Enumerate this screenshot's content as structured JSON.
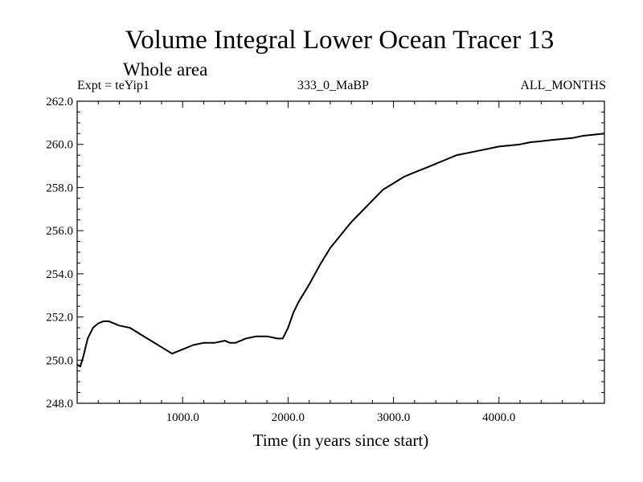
{
  "header": {
    "title": "Volume Integral Lower Ocean Tracer 13",
    "subtitle": "Whole area",
    "expt": "Expt = teYip1",
    "period": "333_0_MaBP",
    "months": "ALL_MONTHS"
  },
  "chart_data": {
    "type": "line",
    "title": "Volume Integral Lower Ocean Tracer 13",
    "subtitle": "Whole area",
    "xlabel": "Time (in years since start)",
    "ylabel": "",
    "xlim": [
      0,
      5000
    ],
    "ylim": [
      248.0,
      262.0
    ],
    "grid": false,
    "x_ticks": [
      1000,
      2000,
      3000,
      4000
    ],
    "x_tick_labels": [
      "1000.0",
      "2000.0",
      "3000.0",
      "4000.0"
    ],
    "y_ticks": [
      248,
      250,
      252,
      254,
      256,
      258,
      260,
      262
    ],
    "y_tick_labels": [
      "248.0",
      "250.0",
      "252.0",
      "254.0",
      "256.0",
      "258.0",
      "260.0",
      "262.0"
    ],
    "series": [
      {
        "name": "Tracer 13",
        "color": "#000000",
        "x": [
          0,
          30,
          60,
          100,
          150,
          200,
          250,
          300,
          400,
          500,
          600,
          700,
          800,
          900,
          1000,
          1100,
          1200,
          1300,
          1400,
          1450,
          1500,
          1600,
          1700,
          1800,
          1900,
          1950,
          2000,
          2050,
          2100,
          2200,
          2300,
          2400,
          2500,
          2600,
          2700,
          2800,
          2900,
          3000,
          3100,
          3200,
          3300,
          3400,
          3500,
          3600,
          3700,
          3800,
          3900,
          4000,
          4100,
          4200,
          4300,
          4400,
          4500,
          4600,
          4700,
          4800,
          4900,
          5000
        ],
        "values": [
          249.8,
          249.7,
          250.2,
          251.0,
          251.5,
          251.7,
          251.8,
          251.8,
          251.6,
          251.5,
          251.2,
          250.9,
          250.6,
          250.3,
          250.5,
          250.7,
          250.8,
          250.8,
          250.9,
          250.8,
          250.8,
          251.0,
          251.1,
          251.1,
          251.0,
          251.0,
          251.5,
          252.2,
          252.7,
          253.5,
          254.4,
          255.2,
          255.8,
          256.4,
          256.9,
          257.4,
          257.9,
          258.2,
          258.5,
          258.7,
          258.9,
          259.1,
          259.3,
          259.5,
          259.6,
          259.7,
          259.8,
          259.9,
          259.95,
          260.0,
          260.1,
          260.15,
          260.2,
          260.25,
          260.3,
          260.4,
          260.45,
          260.5
        ]
      }
    ]
  }
}
